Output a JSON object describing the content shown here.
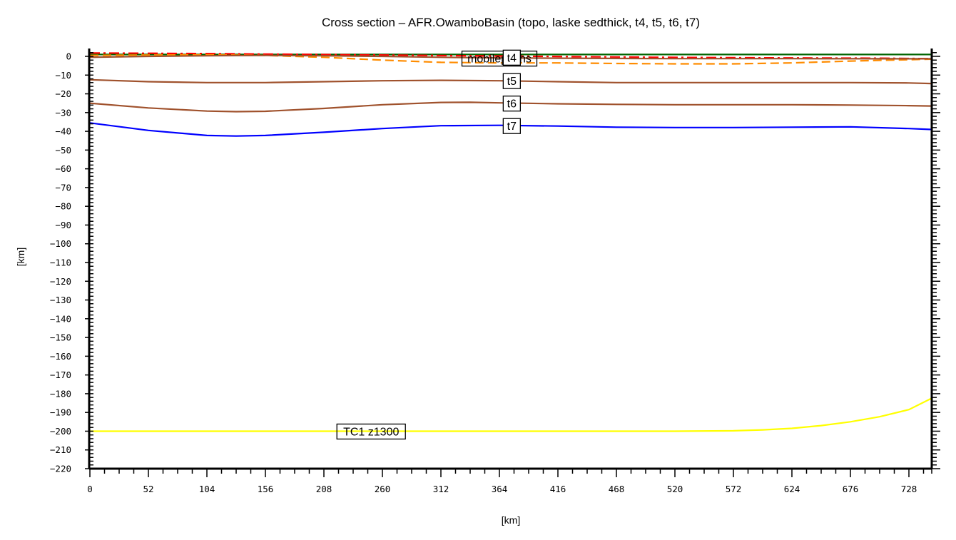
{
  "chart_data": {
    "type": "line",
    "title": "Cross section – AFR.OwamboBasin (topo, laske sedthick, t4, t5, t6, t7)",
    "xlabel": "[km]",
    "ylabel": "[km]",
    "xlim": [
      0,
      748
    ],
    "ylim": [
      -220,
      3.5
    ],
    "x_ticks": [
      0,
      52,
      104,
      156,
      208,
      260,
      312,
      364,
      416,
      468,
      520,
      572,
      624,
      676,
      728
    ],
    "y_ticks": [
      0,
      -10,
      -20,
      -30,
      -40,
      -50,
      -60,
      -70,
      -80,
      -90,
      -100,
      -110,
      -120,
      -130,
      -140,
      -150,
      -160,
      -170,
      -180,
      -190,
      -200,
      -210,
      -220
    ],
    "grid": false,
    "legend": "none (inline boxed labels)",
    "series": [
      {
        "name": "topo",
        "color": "#006400",
        "style": "solid",
        "x": [
          0,
          100,
          200,
          300,
          400,
          500,
          600,
          700,
          748
        ],
        "y": [
          1,
          1,
          1,
          1,
          1,
          1,
          1,
          1,
          1
        ]
      },
      {
        "name": "laske sedthick",
        "color": "#ff0000",
        "style": "dashdot",
        "x": [
          0,
          100,
          200,
          300,
          400,
          500,
          600,
          700,
          748
        ],
        "y": [
          1.8,
          1.5,
          1.0,
          0.5,
          0,
          -0.5,
          -0.8,
          -1.0,
          -1.2
        ]
      },
      {
        "name": "mobilepachs",
        "label": "mobilepachs",
        "color": "#ff8c00",
        "style": "dashed",
        "x": [
          0,
          52,
          104,
          156,
          208,
          260,
          312,
          364,
          416,
          468,
          520,
          572,
          624,
          676,
          728,
          748
        ],
        "y": [
          0.5,
          0.7,
          0.8,
          0.5,
          -0.5,
          -2.0,
          -3.2,
          -3.5,
          -3.5,
          -3.8,
          -4.0,
          -4.0,
          -3.5,
          -2.5,
          -1.8,
          -1.5
        ]
      },
      {
        "name": "t4",
        "label": "t4",
        "color": "#a0522d",
        "style": "solid",
        "x": [
          0,
          52,
          104,
          156,
          208,
          260,
          312,
          364,
          416,
          520,
          624,
          728,
          748
        ],
        "y": [
          -0.5,
          0,
          0.3,
          0.5,
          0.3,
          0,
          -0.5,
          -0.8,
          -1.0,
          -1.2,
          -1.2,
          -1.3,
          -1.3
        ]
      },
      {
        "name": "t5",
        "label": "t5",
        "color": "#a0522d",
        "style": "solid",
        "x": [
          0,
          52,
          104,
          156,
          208,
          260,
          312,
          364,
          416,
          468,
          520,
          572,
          624,
          676,
          728,
          748
        ],
        "y": [
          -12.5,
          -13.5,
          -14.0,
          -14.0,
          -13.5,
          -13.0,
          -12.8,
          -13.0,
          -13.5,
          -14.0,
          -14.0,
          -14.0,
          -14.0,
          -14.0,
          -14.2,
          -14.5
        ]
      },
      {
        "name": "t6",
        "label": "t6",
        "color": "#a0522d",
        "style": "solid",
        "x": [
          0,
          52,
          104,
          130,
          156,
          208,
          260,
          312,
          338,
          364,
          416,
          468,
          520,
          572,
          624,
          676,
          728,
          748
        ],
        "y": [
          -25.0,
          -27.5,
          -29.2,
          -29.5,
          -29.3,
          -27.8,
          -25.8,
          -24.6,
          -24.5,
          -24.8,
          -25.3,
          -25.6,
          -25.8,
          -25.8,
          -25.8,
          -26.0,
          -26.3,
          -26.5
        ]
      },
      {
        "name": "t7",
        "label": "t7",
        "color": "#0000ff",
        "style": "solid",
        "x": [
          0,
          52,
          104,
          130,
          156,
          208,
          260,
          312,
          364,
          416,
          468,
          520,
          572,
          624,
          676,
          728,
          748
        ],
        "y": [
          -35.5,
          -39.5,
          -42.2,
          -42.5,
          -42.2,
          -40.5,
          -38.5,
          -37.0,
          -36.8,
          -37.2,
          -37.8,
          -38.0,
          -38.0,
          -37.8,
          -37.6,
          -38.5,
          -39.0
        ]
      },
      {
        "name": "TC1 z1300",
        "label": "TC1  z1300",
        "color": "#ffff00",
        "style": "solid",
        "x": [
          0,
          104,
          208,
          312,
          416,
          520,
          572,
          598,
          624,
          650,
          676,
          702,
          728,
          748
        ],
        "y": [
          -200,
          -200,
          -200,
          -200,
          -200,
          -200,
          -199.8,
          -199.3,
          -198.5,
          -197.0,
          -195.0,
          -192.3,
          -188.5,
          -182.5
        ]
      }
    ],
    "annotations": [
      {
        "text": "mobilepachs",
        "x": 364,
        "y": -1
      },
      {
        "text": "t4",
        "x": 375,
        "y": -0.5
      },
      {
        "text": "t5",
        "x": 375,
        "y": -13
      },
      {
        "text": "t6",
        "x": 375,
        "y": -25
      },
      {
        "text": "t7",
        "x": 375,
        "y": -37
      },
      {
        "text": "TC1  z1300",
        "x": 250,
        "y": -200
      }
    ]
  }
}
